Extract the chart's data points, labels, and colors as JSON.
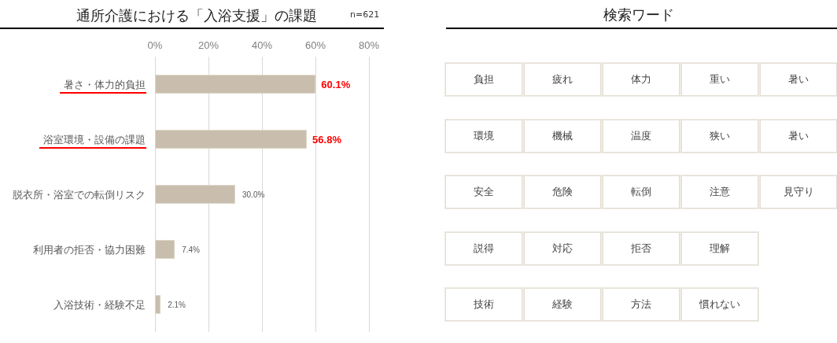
{
  "chart_data": [
    {
      "type": "bar",
      "orientation": "horizontal",
      "title": "通所介護における「入浴支援」の課題",
      "annotations": [
        "n=621"
      ],
      "categories": [
        "暑さ・体力的負担",
        "浴室環境・設備の課題",
        "脱衣所・浴室での転倒リスク",
        "利用者の拒否・協力困難",
        "入浴技術・経験不足"
      ],
      "values": [
        60.1,
        56.8,
        30.0,
        7.4,
        2.1
      ],
      "value_labels": [
        "60.1%",
        "56.8%",
        "30.0%",
        "7.4%",
        "2.1%"
      ],
      "color": "#c9bead",
      "xlim": [
        0,
        80
      ],
      "xticks": [
        {
          "value": 0,
          "label": "0%"
        },
        {
          "value": 20,
          "label": "20%"
        },
        {
          "value": 40,
          "label": "40%"
        },
        {
          "value": 60,
          "label": "60%"
        },
        {
          "value": 80,
          "label": "80%"
        }
      ],
      "grid": "x"
    },
    {
      "type": "other",
      "title": "検索ワード",
      "cell_labels": [
        [
          "負担",
          "疲れ",
          "体力",
          "重い",
          "暑い"
        ],
        [
          "環境",
          "機械",
          "温度",
          "狭い",
          "暑い"
        ],
        [
          "安全",
          "危険",
          "転倒",
          "注意",
          "見守り"
        ],
        [
          "説得",
          "対応",
          "拒否",
          "理解"
        ],
        [
          "技術",
          "経験",
          "方法",
          "慣れない"
        ]
      ]
    }
  ]
}
